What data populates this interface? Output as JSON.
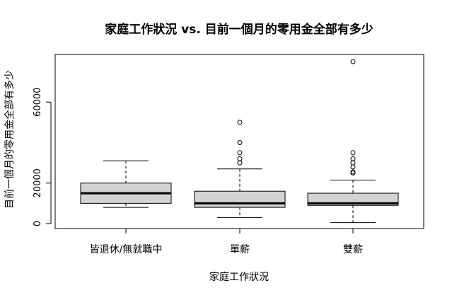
{
  "chart_data": {
    "type": "boxplot",
    "title": "家庭工作狀況 vs. 目前一個月的零用金全部有多少",
    "xlabel": "家庭工作狀況",
    "ylabel": "目前一個月的零用金全部有多少",
    "categories": [
      "皆退休/無就職中",
      "單薪",
      "雙薪"
    ],
    "ylim": [
      0,
      80000
    ],
    "yticks": [
      0,
      20000,
      60000
    ],
    "ytick_labels": [
      "0",
      "20000",
      "60000"
    ],
    "box_fill": "#d3d3d3",
    "grid": false,
    "boxes": [
      {
        "name": "皆退休/無就職中",
        "whisker_low": 8000,
        "q1": 10000,
        "median": 15000,
        "q3": 20000,
        "whisker_high": 31000,
        "outliers": []
      },
      {
        "name": "單薪",
        "whisker_low": 3000,
        "q1": 8000,
        "median": 10000,
        "q3": 16000,
        "whisker_high": 27000,
        "outliers": [
          30000,
          32000,
          35000,
          40000,
          50000
        ]
      },
      {
        "name": "雙薪",
        "whisker_low": 500,
        "q1": 9000,
        "median": 10000,
        "q3": 15000,
        "whisker_high": 21500,
        "outliers": [
          25000,
          25500,
          28000,
          30000,
          32000,
          35000,
          80000
        ]
      }
    ]
  }
}
